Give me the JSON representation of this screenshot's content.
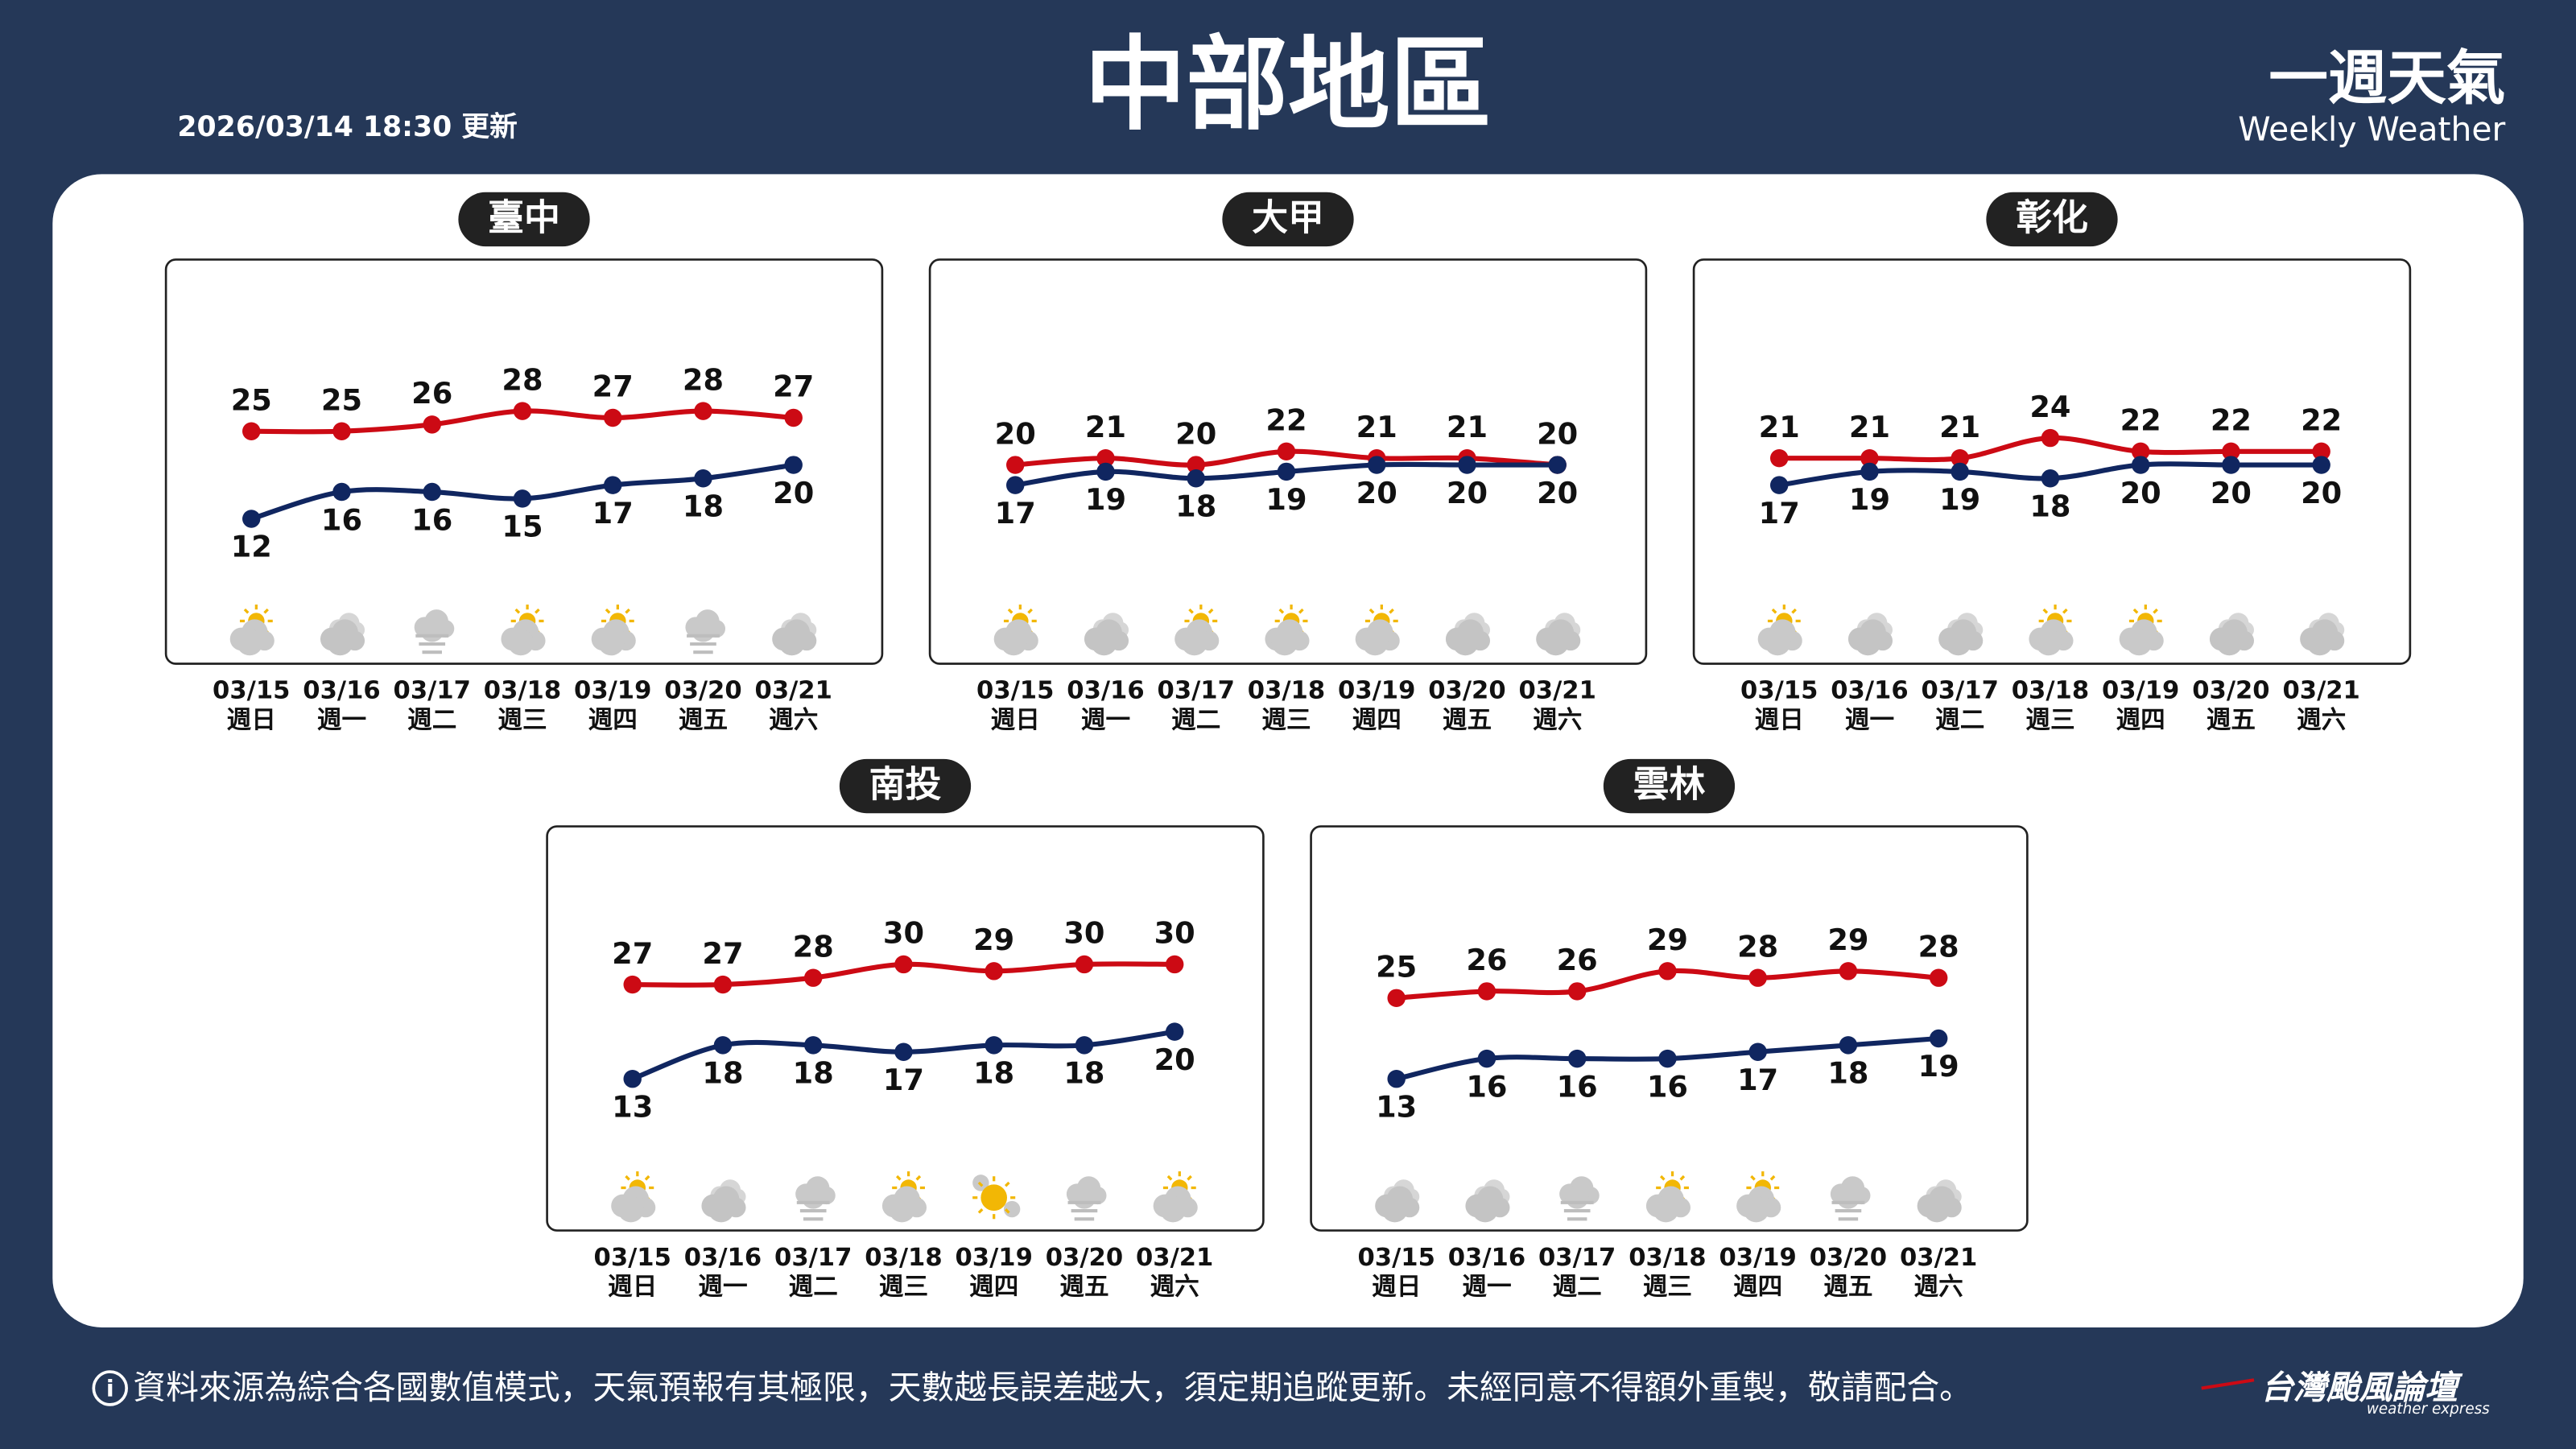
{
  "header": {
    "title": "中部地區",
    "updated": "2026/03/14 18:30 更新",
    "brand": "一週天氣",
    "brand_en": "Weekly Weather"
  },
  "footer": {
    "note": "資料來源為綜合各國數值模式，天氣預報有其極限，天數越長誤差越大，須定期追蹤更新。未經同意不得額外重製，敬請配合。",
    "logo": "台灣颱風論壇",
    "logo_en": "weather express"
  },
  "chart_data": [
    {
      "type": "line",
      "title": "臺中",
      "categories": [
        "03/15",
        "03/16",
        "03/17",
        "03/18",
        "03/19",
        "03/20",
        "03/21"
      ],
      "weekdays": [
        "週日",
        "週一",
        "週二",
        "週三",
        "週四",
        "週五",
        "週六"
      ],
      "series": [
        {
          "color": "#cc0a14",
          "values": [
            25,
            25,
            26,
            28,
            27,
            28,
            27
          ]
        },
        {
          "color": "#102660",
          "values": [
            12,
            16,
            16,
            15,
            17,
            18,
            20
          ]
        }
      ],
      "icons": [
        "sun-cloud",
        "cloud",
        "fog",
        "sun-cloud",
        "sun-cloud",
        "fog",
        "cloud"
      ],
      "ylim": [
        0,
        40
      ]
    },
    {
      "type": "line",
      "title": "大甲",
      "categories": [
        "03/15",
        "03/16",
        "03/17",
        "03/18",
        "03/19",
        "03/20",
        "03/21"
      ],
      "weekdays": [
        "週日",
        "週一",
        "週二",
        "週三",
        "週四",
        "週五",
        "週六"
      ],
      "series": [
        {
          "color": "#cc0a14",
          "values": [
            20,
            21,
            20,
            22,
            21,
            21,
            20
          ]
        },
        {
          "color": "#102660",
          "values": [
            17,
            19,
            18,
            19,
            20,
            20,
            20
          ]
        }
      ],
      "icons": [
        "sun-cloud",
        "cloud",
        "sun-cloud",
        "sun-cloud",
        "sun-cloud",
        "cloud",
        "cloud"
      ],
      "ylim": [
        0,
        40
      ]
    },
    {
      "type": "line",
      "title": "彰化",
      "categories": [
        "03/15",
        "03/16",
        "03/17",
        "03/18",
        "03/19",
        "03/20",
        "03/21"
      ],
      "weekdays": [
        "週日",
        "週一",
        "週二",
        "週三",
        "週四",
        "週五",
        "週六"
      ],
      "series": [
        {
          "color": "#cc0a14",
          "values": [
            21,
            21,
            21,
            24,
            22,
            22,
            22
          ]
        },
        {
          "color": "#102660",
          "values": [
            17,
            19,
            19,
            18,
            20,
            20,
            20
          ]
        }
      ],
      "icons": [
        "sun-cloud",
        "cloud",
        "cloud",
        "sun-cloud",
        "sun-cloud",
        "cloud",
        "cloud"
      ],
      "ylim": [
        0,
        40
      ]
    },
    {
      "type": "line",
      "title": "南投",
      "categories": [
        "03/15",
        "03/16",
        "03/17",
        "03/18",
        "03/19",
        "03/20",
        "03/21"
      ],
      "weekdays": [
        "週日",
        "週一",
        "週二",
        "週三",
        "週四",
        "週五",
        "週六"
      ],
      "series": [
        {
          "color": "#cc0a14",
          "values": [
            27,
            27,
            28,
            30,
            29,
            30,
            30
          ]
        },
        {
          "color": "#102660",
          "values": [
            13,
            18,
            18,
            17,
            18,
            18,
            20
          ]
        }
      ],
      "icons": [
        "sun-cloud",
        "cloud",
        "fog",
        "sun-cloud",
        "sun",
        "fog",
        "sun-cloud"
      ],
      "ylim": [
        0,
        40
      ]
    },
    {
      "type": "line",
      "title": "雲林",
      "categories": [
        "03/15",
        "03/16",
        "03/17",
        "03/18",
        "03/19",
        "03/20",
        "03/21"
      ],
      "weekdays": [
        "週日",
        "週一",
        "週二",
        "週三",
        "週四",
        "週五",
        "週六"
      ],
      "series": [
        {
          "color": "#cc0a14",
          "values": [
            25,
            26,
            26,
            29,
            28,
            29,
            28
          ]
        },
        {
          "color": "#102660",
          "values": [
            13,
            16,
            16,
            16,
            17,
            18,
            19
          ]
        }
      ],
      "icons": [
        "cloud",
        "cloud",
        "fog",
        "sun-cloud",
        "sun-cloud",
        "fog",
        "cloud"
      ],
      "ylim": [
        0,
        40
      ]
    }
  ]
}
